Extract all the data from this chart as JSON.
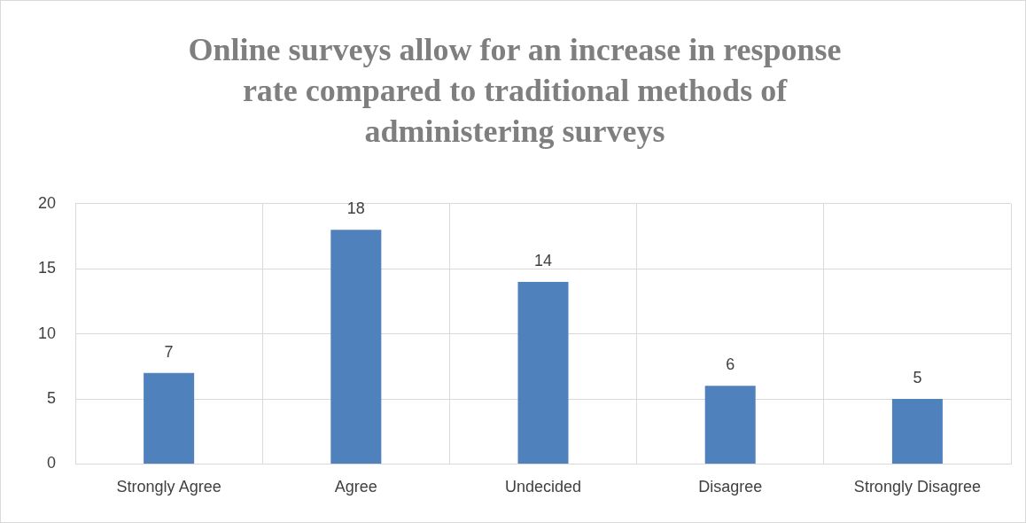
{
  "chart_data": {
    "type": "bar",
    "title": "Online surveys allow for an increase in response rate compared to traditional methods of administering surveys",
    "categories": [
      "Strongly Agree",
      "Agree",
      "Undecided",
      "Disagree",
      "Strongly Disagree"
    ],
    "values": [
      7,
      18,
      14,
      6,
      5
    ],
    "color": "#4f81bd",
    "ylim": [
      0,
      20
    ],
    "yticks": [
      0,
      5,
      10,
      15,
      20
    ],
    "grid": true,
    "data_labels": true
  }
}
